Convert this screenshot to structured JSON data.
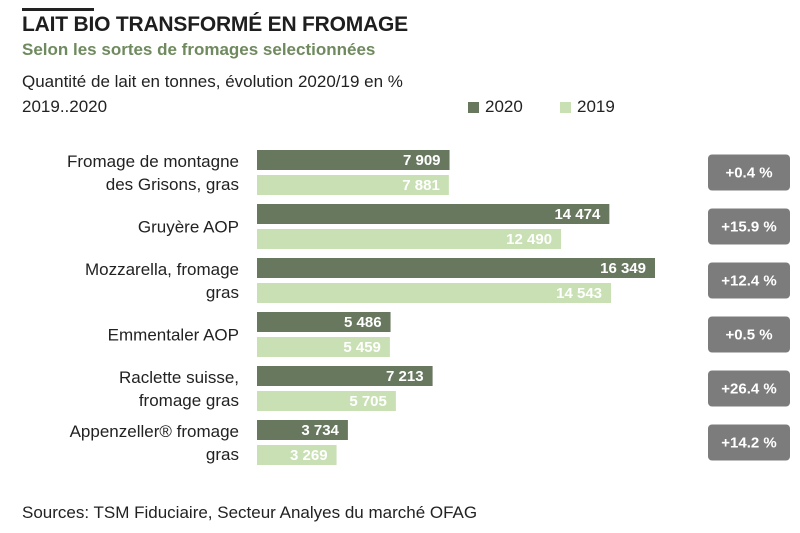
{
  "header": {
    "title": "LAIT BIO TRANSFORMÉ EN FROMAGE",
    "subtitle": "Selon les sortes de fromages selectionnées",
    "unit_label": "Quantité de lait en tonnes, évolution 2020/19  en %",
    "period_label": "2019..2020"
  },
  "footer": {
    "source": "Sources: TSM Fiduciaire, Secteur Analyes du marché OFAG"
  },
  "colors": {
    "series_2020": "#68785f",
    "series_2019": "#c9e0b4",
    "badge": "#7c7c7c"
  },
  "chart_data": {
    "type": "bar",
    "orientation": "horizontal",
    "categories": [
      [
        "Fromage de montagne",
        "des Grisons, gras"
      ],
      [
        "Gruyère AOP"
      ],
      [
        "Mozzarella, fromage",
        "gras"
      ],
      [
        "Emmentaler AOP"
      ],
      [
        "Raclette suisse,",
        "fromage gras"
      ],
      [
        "Appenzeller® fromage",
        "gras"
      ]
    ],
    "series": [
      {
        "name": "2020",
        "values": [
          7909,
          14474,
          16349,
          5486,
          7213,
          3734
        ],
        "labels": [
          "7 909",
          "14 474",
          "16 349",
          "5 486",
          "7 213",
          "3 734"
        ]
      },
      {
        "name": "2019",
        "values": [
          7881,
          12490,
          14543,
          5459,
          5705,
          3269
        ],
        "labels": [
          "7 881",
          "12 490",
          "14 543",
          "5 459",
          "5 705",
          "3 269"
        ]
      }
    ],
    "change_labels": [
      "+0.4 %",
      "+15.9 %",
      "+12.4 %",
      "+0.5 %",
      "+26.4 %",
      "+14.2 %"
    ],
    "legend": "top-right",
    "grid": false
  }
}
